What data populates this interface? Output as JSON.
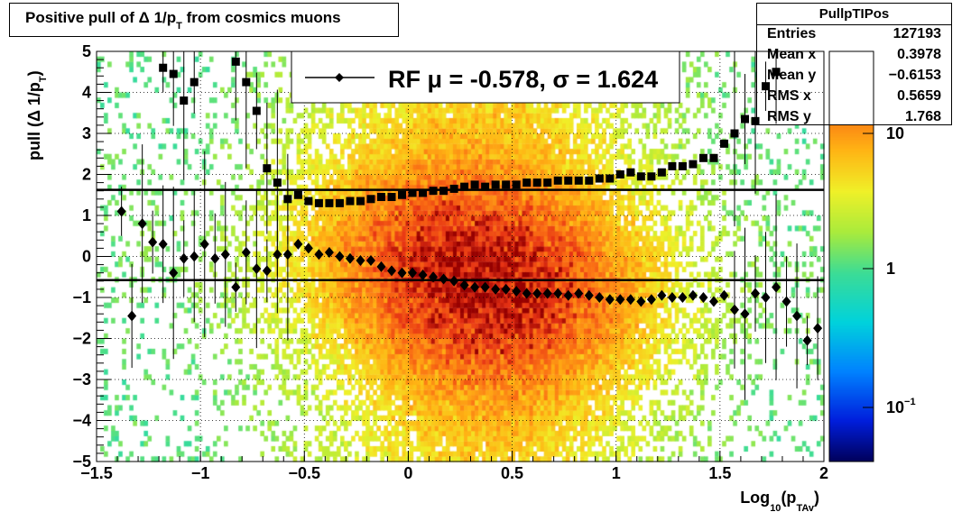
{
  "title": {
    "main": "Positive pull of Δ 1/p",
    "sub": "T",
    "rest": "  from cosmics muons"
  },
  "stats": {
    "name": "PullpTIPos",
    "rows": [
      {
        "label": "Entries",
        "value": "127193"
      },
      {
        "label": "Mean x",
        "value": "0.3978"
      },
      {
        "label": "Mean y",
        "value": "−0.6153"
      },
      {
        "label": "RMS x",
        "value": "0.5659"
      },
      {
        "label": "RMS y",
        "value": "1.768"
      }
    ]
  },
  "legend": {
    "text": "RF μ = -0.578, σ =   1.624"
  },
  "chart_data": {
    "type": "heatmap",
    "title": "Positive pull of Δ 1/pT  from cosmics muons",
    "xlabel": "Log10(pTAv)",
    "ylabel": "pull (Δ 1/pT)",
    "xlim": [
      -1.5,
      2
    ],
    "ylim": [
      -5,
      5
    ],
    "x_ticks": [
      "−1.5",
      "−1",
      "−0.5",
      "0",
      "0.5",
      "1",
      "1.5",
      "2"
    ],
    "y_ticks": [
      "−5",
      "−4",
      "−3",
      "−2",
      "−1",
      "0",
      "1",
      "2",
      "3",
      "4",
      "5"
    ],
    "colorbar": {
      "scale": "log",
      "labels": [
        "10",
        "1",
        "10⁻¹"
      ]
    },
    "reference_lines": [
      1.624,
      -0.578
    ],
    "grid": true,
    "series": [
      {
        "name": "RF",
        "marker": "diamond",
        "x": [
          -1.38,
          -1.33,
          -1.28,
          -1.23,
          -1.18,
          -1.13,
          -1.08,
          -1.03,
          -0.98,
          -0.93,
          -0.88,
          -0.83,
          -0.78,
          -0.73,
          -0.68,
          -0.63,
          -0.58,
          -0.53,
          -0.48,
          -0.43,
          -0.38,
          -0.33,
          -0.28,
          -0.23,
          -0.18,
          -0.13,
          -0.08,
          -0.03,
          0.02,
          0.07,
          0.12,
          0.17,
          0.22,
          0.27,
          0.32,
          0.37,
          0.42,
          0.47,
          0.52,
          0.57,
          0.62,
          0.67,
          0.72,
          0.77,
          0.82,
          0.87,
          0.92,
          0.97,
          1.02,
          1.07,
          1.12,
          1.17,
          1.22,
          1.27,
          1.32,
          1.37,
          1.42,
          1.47,
          1.52,
          1.57,
          1.62,
          1.67,
          1.72,
          1.77,
          1.82,
          1.87,
          1.92,
          1.97
        ],
        "y": [
          1.1,
          -1.45,
          0.8,
          0.35,
          0.3,
          -0.4,
          -0.05,
          0.0,
          0.3,
          -0.05,
          0.05,
          -0.75,
          0.1,
          -0.3,
          -0.35,
          0.05,
          0.05,
          0.3,
          0.2,
          0.05,
          0.1,
          0.0,
          -0.05,
          -0.1,
          -0.1,
          -0.25,
          -0.35,
          -0.4,
          -0.4,
          -0.45,
          -0.5,
          -0.55,
          -0.6,
          -0.7,
          -0.75,
          -0.75,
          -0.8,
          -0.8,
          -0.85,
          -0.9,
          -0.9,
          -0.9,
          -0.9,
          -0.95,
          -0.9,
          -0.95,
          -1.0,
          -1.05,
          -1.05,
          -1.05,
          -1.1,
          -1.05,
          -0.95,
          -1.0,
          -1.0,
          -0.95,
          -1.0,
          -1.1,
          -0.95,
          -1.3,
          -1.4,
          -0.9,
          -1.0,
          -0.75,
          -1.1,
          -1.45,
          -2.05,
          -1.75
        ]
      },
      {
        "name": "",
        "marker": "square",
        "x": [
          -1.18,
          -1.13,
          -1.08,
          -1.03,
          -0.83,
          -0.78,
          -0.73,
          -0.68,
          -0.63,
          -0.58,
          -0.53,
          -0.48,
          -0.43,
          -0.38,
          -0.33,
          -0.28,
          -0.23,
          -0.18,
          -0.13,
          -0.08,
          -0.03,
          0.02,
          0.07,
          0.12,
          0.17,
          0.22,
          0.27,
          0.32,
          0.37,
          0.42,
          0.47,
          0.52,
          0.57,
          0.62,
          0.67,
          0.72,
          0.77,
          0.82,
          0.87,
          0.92,
          0.97,
          1.02,
          1.07,
          1.12,
          1.17,
          1.22,
          1.27,
          1.32,
          1.37,
          1.42,
          1.47,
          1.52,
          1.57,
          1.62,
          1.67,
          1.72,
          1.77
        ],
        "y": [
          4.6,
          4.45,
          3.8,
          4.25,
          4.75,
          4.25,
          3.55,
          2.15,
          1.8,
          1.4,
          1.5,
          1.35,
          1.3,
          1.3,
          1.3,
          1.35,
          1.35,
          1.4,
          1.45,
          1.45,
          1.5,
          1.55,
          1.55,
          1.6,
          1.6,
          1.65,
          1.7,
          1.75,
          1.7,
          1.75,
          1.75,
          1.75,
          1.8,
          1.8,
          1.8,
          1.85,
          1.85,
          1.85,
          1.85,
          1.9,
          1.9,
          2.0,
          2.05,
          1.95,
          1.95,
          2.05,
          2.2,
          2.2,
          2.25,
          2.4,
          2.4,
          2.75,
          3.0,
          3.35,
          3.3,
          4.15,
          4.5
        ]
      }
    ]
  }
}
